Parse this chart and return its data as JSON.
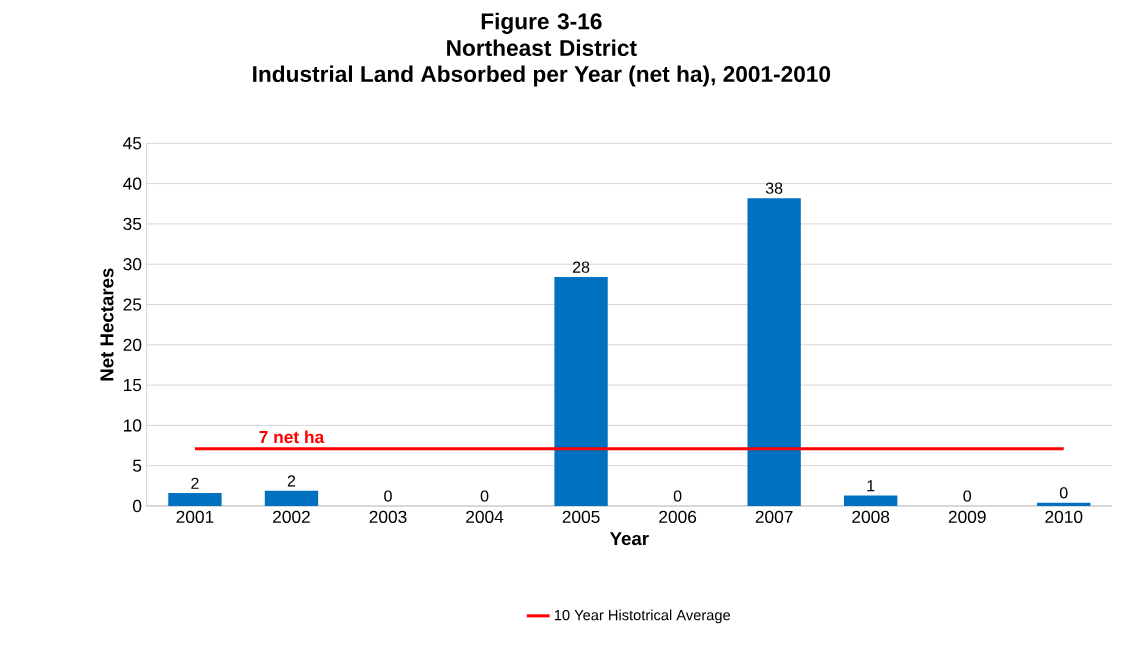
{
  "chart_data": {
    "type": "bar",
    "title": "Figure 3-16 Northeast District",
    "subtitle": "Industrial Land Absorbed per Year (net ha), 2001-2010",
    "xlabel": "Year",
    "ylabel": "Net Hectares",
    "categories": [
      "2001",
      "2002",
      "2003",
      "2004",
      "2005",
      "2006",
      "2007",
      "2008",
      "2009",
      "2010"
    ],
    "series": [
      {
        "color": "#0070c0",
        "values": [
          1.6,
          1.9,
          0,
          0,
          28.4,
          0,
          38.2,
          1.3,
          0,
          0.4
        ],
        "value_labels": [
          "2",
          "2",
          "0",
          "0",
          "28",
          "0",
          "38",
          "1",
          "0",
          "0"
        ]
      },
      {
        "type": "line",
        "name": "10 Year Histotrical Average",
        "color": "#ff0000",
        "values": [
          7.1,
          7.1,
          7.1,
          7.1,
          7.1,
          7.1,
          7.1,
          7.1,
          7.1,
          7.1
        ]
      }
    ],
    "annotations": [
      {
        "text": "7 net ha",
        "x": "2002",
        "y": 7.1
      }
    ],
    "ylim": [
      0,
      45
    ],
    "yticks": [
      0,
      5,
      10,
      15,
      20,
      25,
      30,
      35,
      40,
      45
    ],
    "grid": "y",
    "legend": "bottom"
  }
}
